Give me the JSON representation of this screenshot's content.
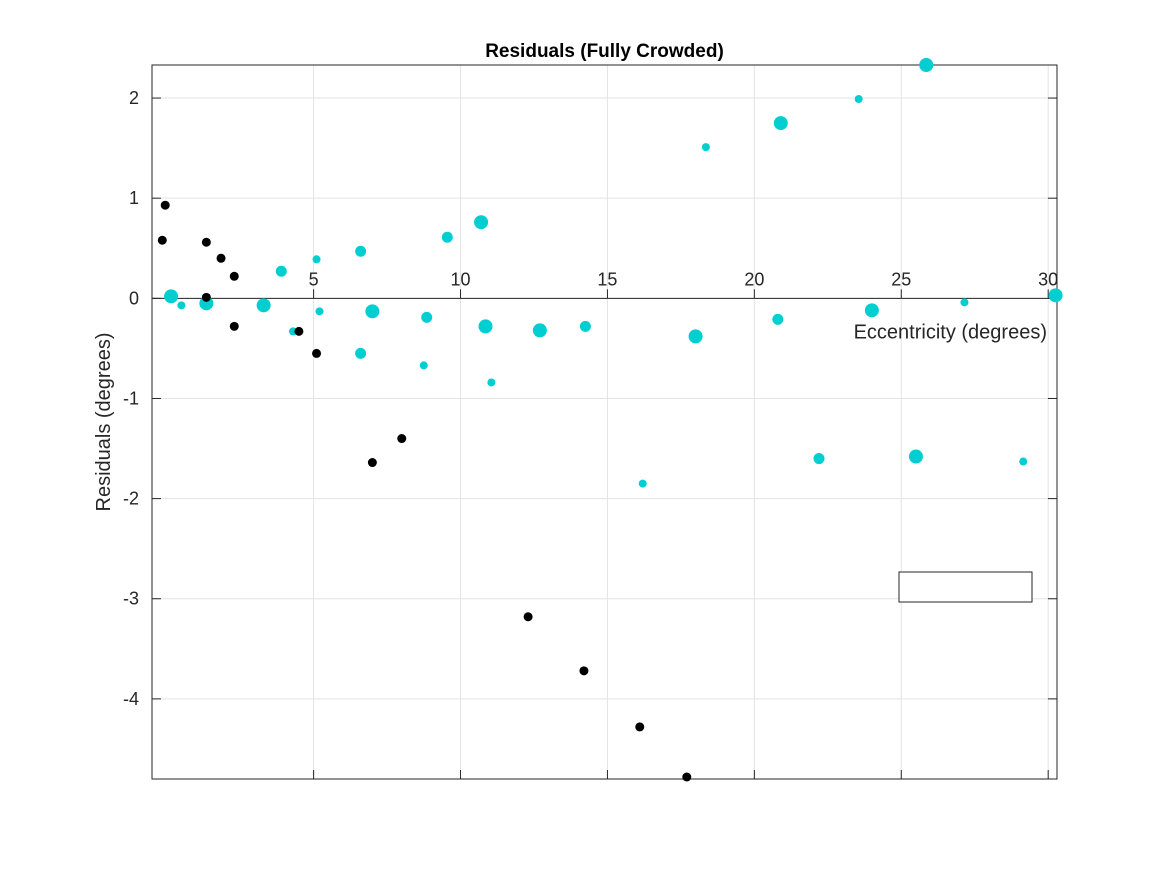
{
  "chart_data": {
    "type": "scatter",
    "title": "Residuals (Fully Crowded)",
    "xlabel": "Eccentricity (degrees)",
    "ylabel": "Residuals (degrees)",
    "xlim": [
      -0.5,
      30.3
    ],
    "ylim": [
      -4.8,
      2.33
    ],
    "xticks": [
      5,
      10,
      15,
      20,
      25,
      30
    ],
    "xtick_labels": [
      "5",
      "10",
      "15",
      "20",
      "25",
      "30"
    ],
    "yticks": [
      -4,
      -3,
      -2,
      -1,
      0,
      1,
      2
    ],
    "ytick_labels": [
      "-4",
      "-3",
      "-2",
      "-1",
      "0",
      "1",
      "2"
    ],
    "grid": true,
    "x_axis_location": "origin",
    "legend": {
      "position": "lower-right",
      "entries": []
    },
    "series": [
      {
        "color": "#00CED1",
        "points": [
          {
            "x": 0.15,
            "y": 0.02,
            "size": "large"
          },
          {
            "x": 0.5,
            "y": -0.07,
            "size": "small"
          },
          {
            "x": 1.35,
            "y": -0.05,
            "size": "large"
          },
          {
            "x": 3.3,
            "y": -0.07,
            "size": "large"
          },
          {
            "x": 3.9,
            "y": 0.27,
            "size": "medium"
          },
          {
            "x": 4.3,
            "y": -0.33,
            "size": "small"
          },
          {
            "x": 5.1,
            "y": 0.39,
            "size": "small"
          },
          {
            "x": 5.2,
            "y": -0.13,
            "size": "small"
          },
          {
            "x": 6.6,
            "y": 0.47,
            "size": "medium"
          },
          {
            "x": 6.6,
            "y": -0.55,
            "size": "medium"
          },
          {
            "x": 7.0,
            "y": -0.13,
            "size": "large"
          },
          {
            "x": 8.75,
            "y": -0.67,
            "size": "small"
          },
          {
            "x": 8.85,
            "y": -0.19,
            "size": "medium"
          },
          {
            "x": 9.55,
            "y": 0.61,
            "size": "medium"
          },
          {
            "x": 10.7,
            "y": 0.76,
            "size": "large"
          },
          {
            "x": 10.85,
            "y": -0.28,
            "size": "large"
          },
          {
            "x": 11.05,
            "y": -0.84,
            "size": "small"
          },
          {
            "x": 12.7,
            "y": -0.32,
            "size": "large"
          },
          {
            "x": 14.25,
            "y": -0.28,
            "size": "medium"
          },
          {
            "x": 16.2,
            "y": -1.85,
            "size": "small"
          },
          {
            "x": 18.0,
            "y": -0.38,
            "size": "large"
          },
          {
            "x": 18.35,
            "y": 1.51,
            "size": "small"
          },
          {
            "x": 20.8,
            "y": -0.21,
            "size": "medium"
          },
          {
            "x": 20.9,
            "y": 1.75,
            "size": "large"
          },
          {
            "x": 22.2,
            "y": -1.6,
            "size": "medium"
          },
          {
            "x": 23.55,
            "y": 1.99,
            "size": "small"
          },
          {
            "x": 24.0,
            "y": -0.12,
            "size": "large"
          },
          {
            "x": 25.5,
            "y": -1.58,
            "size": "large"
          },
          {
            "x": 25.85,
            "y": 2.33,
            "size": "large"
          },
          {
            "x": 27.15,
            "y": -0.04,
            "size": "small"
          },
          {
            "x": 29.15,
            "y": -1.63,
            "size": "small"
          },
          {
            "x": 30.25,
            "y": 0.03,
            "size": "large"
          }
        ]
      },
      {
        "color": "#000000",
        "points": [
          {
            "x": -0.05,
            "y": 0.93
          },
          {
            "x": -0.15,
            "y": 0.58
          },
          {
            "x": 1.35,
            "y": 0.56
          },
          {
            "x": 1.35,
            "y": 0.01
          },
          {
            "x": 1.85,
            "y": 0.4
          },
          {
            "x": 2.3,
            "y": 0.22
          },
          {
            "x": 2.3,
            "y": -0.28
          },
          {
            "x": 4.5,
            "y": -0.33
          },
          {
            "x": 5.1,
            "y": -0.55
          },
          {
            "x": 7.0,
            "y": -1.64
          },
          {
            "x": 8.0,
            "y": -1.4
          },
          {
            "x": 12.3,
            "y": -3.18
          },
          {
            "x": 14.2,
            "y": -3.72
          },
          {
            "x": 16.1,
            "y": -4.28
          },
          {
            "x": 17.7,
            "y": -4.78
          }
        ]
      }
    ]
  }
}
